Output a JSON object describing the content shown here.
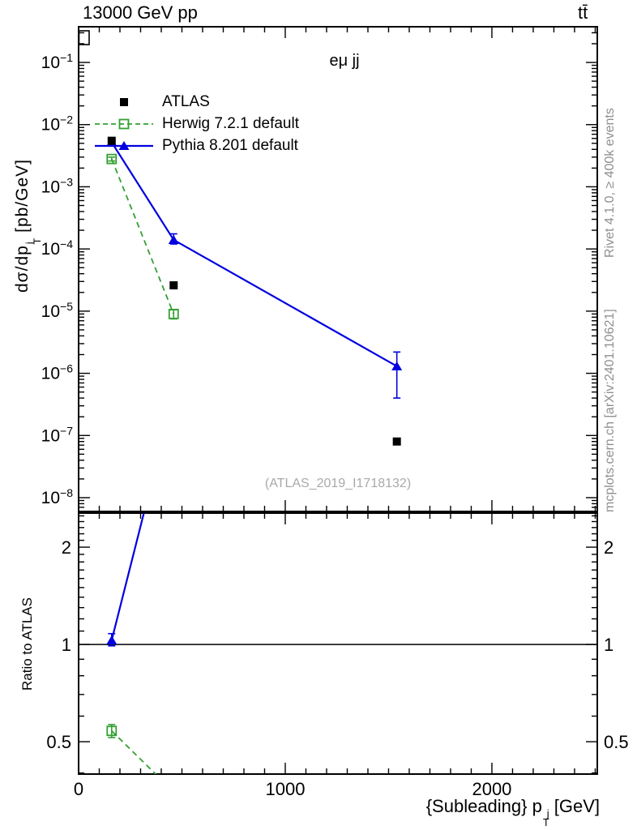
{
  "header": {
    "title_left": "13000 GeV pp",
    "title_right": "tt̄"
  },
  "labels": {
    "region": "eμ jj",
    "watermark": "(ATLAS_2019_I1718132)",
    "credit_top": "Rivet 4.1.0, ≥ 400k events",
    "credit_bottom": "mcplots.cern.ch [arXiv:2401.10621]",
    "ylabel_main": {
      "prefix": "dσ/dp",
      "sup": "j",
      "sub": "T",
      "suffix": " [pb/GeV]"
    },
    "ratio_ylabel": "Ratio to ATLAS",
    "xlabel": {
      "prefix": "{Subleading} p",
      "sup": "j",
      "sub": "T",
      "suffix": " [GeV]"
    }
  },
  "colors": {
    "atlas": "#000000",
    "herwig_green": "#33a033",
    "pythia_blue": "#0000e0",
    "credit_gray": "#8f8f8f",
    "watermark_gray": "#a9a9a9"
  },
  "legend": {
    "items": [
      {
        "label": "ATLAS",
        "marker": "filled-square",
        "line": "none",
        "color": "#000000"
      },
      {
        "label": "Herwig 7.2.1 default",
        "marker": "open-square",
        "line": "dashed",
        "color": "#33a033"
      },
      {
        "label": "Pythia 8.201 default",
        "marker": "filled-triangle",
        "line": "solid",
        "color": "#0000e0"
      }
    ]
  },
  "chart_data": {
    "type": "line",
    "title": "13000 GeV pp tt̄ — eμ jj",
    "xlabel": "{Subleading} pT^j [GeV]",
    "x_range": [
      0,
      2510
    ],
    "x_ticks": [
      0,
      1000,
      2000
    ],
    "x_minor_step": 100,
    "panels": {
      "main": {
        "ylabel": "dσ/dpT^j [pb/GeV]",
        "yscale": "log",
        "ylim": [
          6e-09,
          0.375
        ],
        "ytick_exponents": [
          -1,
          -2,
          -3,
          -4,
          -5,
          -6,
          -7,
          -8
        ],
        "series": [
          {
            "name": "ATLAS",
            "style": "marker-only",
            "marker": "filled-square",
            "color": "#000000",
            "x": [
              160,
              460,
              1540
            ],
            "y": [
              0.0055,
              2.6e-05,
              8e-08
            ]
          },
          {
            "name": "Herwig 7.2.1 default",
            "style": "dashed-line",
            "marker": "open-square",
            "color": "#33a033",
            "x": [
              160,
              460
            ],
            "y": [
              0.0028,
              9e-06
            ],
            "y_err_lo": [
              0.0026,
              7.5e-06
            ],
            "y_err_hi": [
              0.003,
              1.05e-05
            ]
          },
          {
            "name": "Pythia 8.201 default",
            "style": "solid-line",
            "marker": "filled-triangle",
            "color": "#0000e0",
            "x": [
              160,
              460,
              1540
            ],
            "y": [
              0.0052,
              0.00014,
              1.3e-06
            ],
            "y_err_lo": [
              0.005,
              0.00012,
              4e-07
            ],
            "y_err_hi": [
              0.0054,
              0.000175,
              2.2e-06
            ]
          }
        ]
      },
      "ratio": {
        "ylabel": "Ratio to ATLAS",
        "yscale": "log",
        "ylim": [
          0.397,
          2.55
        ],
        "y_ticks": [
          0.5,
          1,
          2
        ],
        "y_minor_step": 0.1,
        "reference_line": 1.0,
        "series": [
          {
            "name": "Herwig 7.2.1 default",
            "style": "dashed-line",
            "marker": "open-square",
            "color": "#33a033",
            "x": [
              160,
              460
            ],
            "y": [
              0.54,
              0.35
            ],
            "y_err_lo": [
              0.515,
              null
            ],
            "y_err_hi": [
              0.565,
              null
            ]
          },
          {
            "name": "Pythia 8.201 default",
            "style": "solid-line",
            "marker": "filled-triangle",
            "color": "#0000e0",
            "x": [
              160,
              460
            ],
            "y": [
              1.03,
              5.9
            ],
            "y_err_lo": [
              0.99,
              null
            ],
            "y_err_hi": [
              1.08,
              null
            ]
          }
        ]
      }
    }
  }
}
